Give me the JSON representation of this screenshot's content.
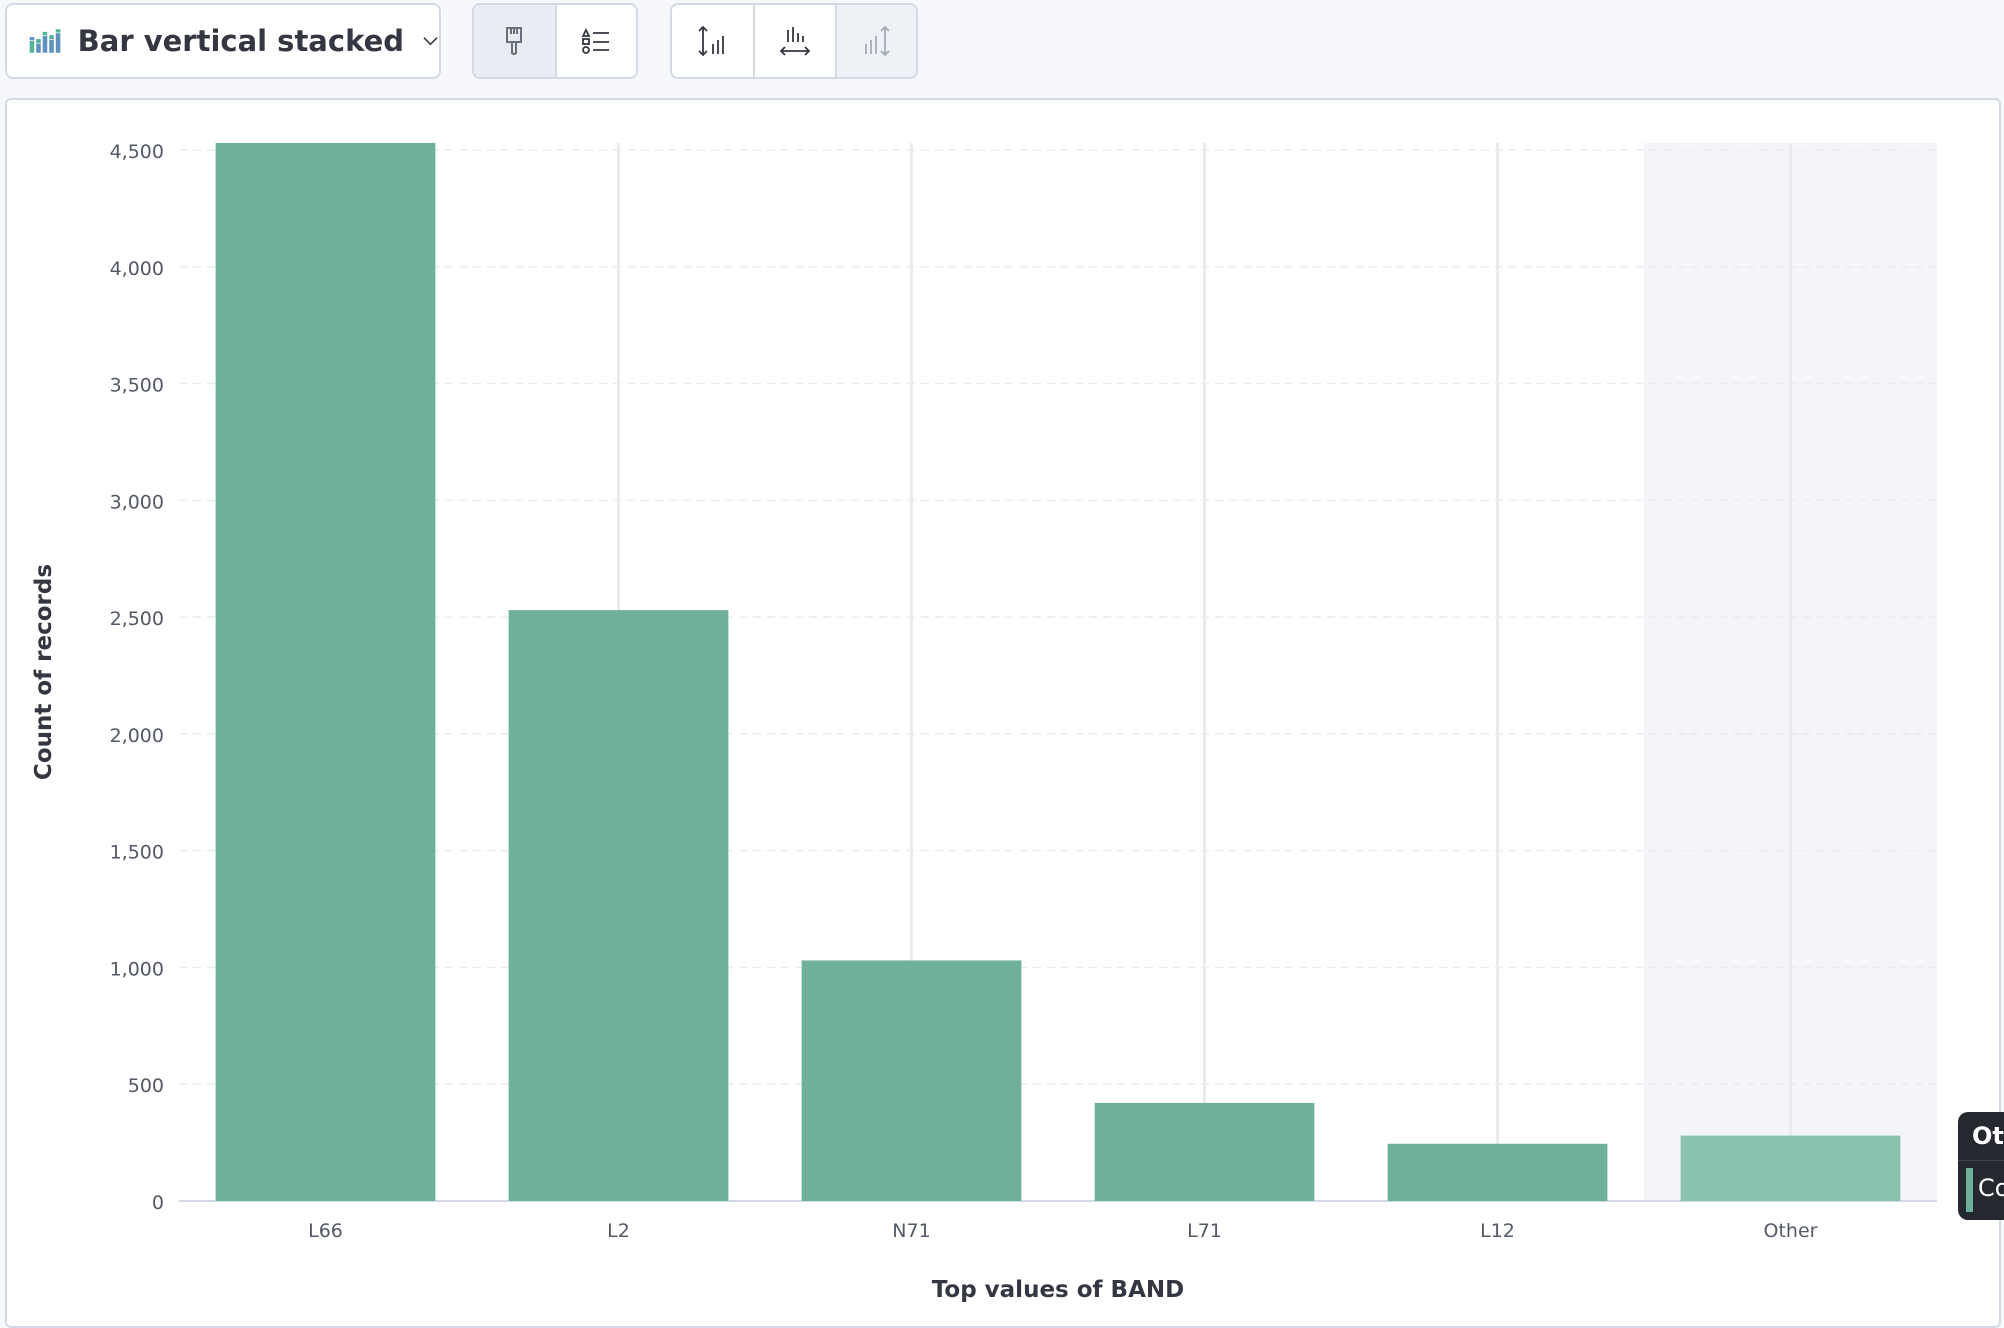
{
  "toolbar": {
    "chart_type_label": "Bar vertical stacked",
    "chart_type_icon": "bar-stacked-icon",
    "style_button_icon": "paintbrush-icon",
    "legend_button_icon": "list-icon",
    "left_axis_button_icon": "left-axis-icon",
    "bottom_axis_button_icon": "bottom-axis-icon",
    "right_axis_button_icon": "right-axis-icon"
  },
  "tooltip": {
    "title_visible": "Oth",
    "row_visible": "Co"
  },
  "colors": {
    "bar": "#6eb09a",
    "bar_other": "#8bc2ad",
    "highlight_band": "#f4f5f9",
    "icon_accent": "#54b399",
    "text": "#343741",
    "tick_text": "#535966"
  },
  "chart_data": {
    "type": "bar",
    "stacked": true,
    "categories": [
      "L66",
      "L2",
      "N71",
      "L71",
      "L12",
      "Other"
    ],
    "values": [
      4530,
      2530,
      1030,
      420,
      245,
      280
    ],
    "xlabel": "Top values of BAND",
    "ylabel": "Count of records",
    "ylim": [
      0,
      4530
    ],
    "yticks": [
      0,
      500,
      1000,
      1500,
      2000,
      2500,
      3000,
      3500,
      4000,
      4500
    ],
    "ytick_labels": [
      "0",
      "500",
      "1,000",
      "1,500",
      "2,000",
      "2,500",
      "3,000",
      "3,500",
      "4,000",
      "4,500"
    ],
    "highlighted_category": "Other",
    "grid": true
  }
}
